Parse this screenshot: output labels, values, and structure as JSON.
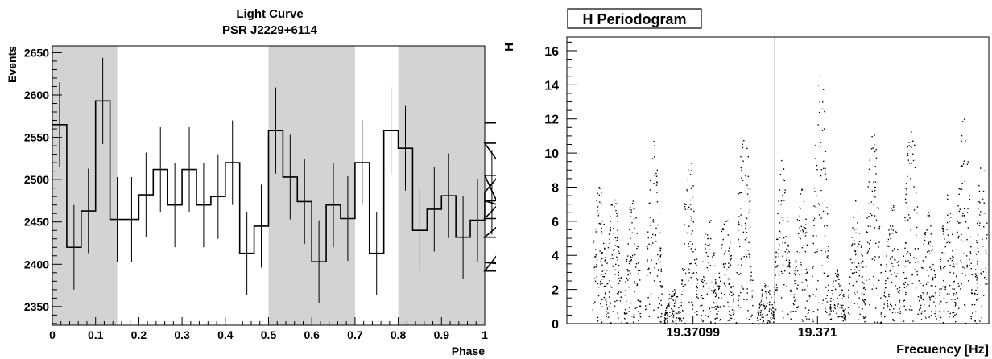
{
  "left_panel": {
    "title": "Light Curve",
    "subtitle": "PSR J2229+6114"
  },
  "right_panel": {
    "title": "H Periodogram"
  },
  "chart_data": [
    {
      "type": "histogram",
      "title": "Light Curve",
      "subtitle": "PSR J2229+6114",
      "xlabel": "Phase",
      "ylabel": "Events",
      "xlim": [
        0,
        1
      ],
      "ylim": [
        2328,
        2658
      ],
      "x_ticks": [
        0,
        0.1,
        0.2,
        0.3,
        0.4,
        0.5,
        0.6,
        0.7,
        0.8,
        0.9,
        1
      ],
      "x_tick_labels": [
        "0",
        "0.1",
        "0.2",
        "0.3",
        "0.4",
        "0.5",
        "0.6",
        "0.7",
        "0.8",
        "0.9",
        "1"
      ],
      "y_ticks": [
        2350,
        2400,
        2450,
        2500,
        2550,
        2600,
        2650
      ],
      "y_tick_labels": [
        "2350",
        "2400",
        "2450",
        "2500",
        "2550",
        "2600",
        "2650"
      ],
      "shaded_phase_ranges": [
        [
          0,
          0.15
        ],
        [
          0.5,
          0.7
        ],
        [
          0.8,
          1
        ]
      ],
      "shade_color": "#d3d3d3",
      "bin_width": 0.03333,
      "values": [
        2565,
        2420,
        2463,
        2593,
        2453,
        2453,
        2482,
        2512,
        2470,
        2512,
        2470,
        2480,
        2520,
        2413,
        2445,
        2558,
        2503,
        2474,
        2403,
        2470,
        2454,
        2520,
        2413,
        2558,
        2537,
        2440,
        2465,
        2481,
        2432,
        2452,
        2485,
        2505,
        2432,
        2475,
        2454,
        2543,
        2402,
        2392,
        2567
      ],
      "errors": [
        50,
        50,
        50,
        51,
        50,
        50,
        50,
        50,
        50,
        50,
        50,
        50,
        50,
        49,
        49,
        51,
        50,
        50,
        49,
        50,
        50,
        50,
        49,
        51,
        50,
        49,
        50,
        50,
        49,
        49,
        50,
        50,
        49,
        50,
        50,
        50,
        49,
        49,
        51
      ]
    },
    {
      "type": "scatter",
      "title": "H Periodogram",
      "xlabel": "Frecuency [Hz]",
      "ylabel": "H",
      "ylim": [
        0,
        16.8
      ],
      "y_ticks": [
        0,
        2,
        4,
        6,
        8,
        10,
        12,
        14,
        16
      ],
      "y_tick_labels": [
        "0",
        "2",
        "4",
        "6",
        "8",
        "10",
        "12",
        "14",
        "16"
      ],
      "x_tick_labels": [
        "19.37099",
        "19.371"
      ],
      "x_tick_label_positions_relative": [
        0.299,
        0.594
      ],
      "vertical_line_relative_x": 0.493,
      "lobes": [
        {
          "c": 0.075,
          "pk": 8.2
        },
        {
          "c": 0.11,
          "pk": 7.6
        },
        {
          "c": 0.155,
          "pk": 7.6
        },
        {
          "c": 0.205,
          "pk": 10.8
        },
        {
          "c": 0.25,
          "pk": 2.2
        },
        {
          "c": 0.29,
          "pk": 10.0
        },
        {
          "c": 0.335,
          "pk": 6.6
        },
        {
          "c": 0.375,
          "pk": 6.6
        },
        {
          "c": 0.42,
          "pk": 12.1
        },
        {
          "c": 0.47,
          "pk": 2.5
        },
        {
          "c": 0.51,
          "pk": 9.7
        },
        {
          "c": 0.555,
          "pk": 8.0
        },
        {
          "c": 0.6,
          "pk": 15.2
        },
        {
          "c": 0.64,
          "pk": 3.2
        },
        {
          "c": 0.685,
          "pk": 7.4
        },
        {
          "c": 0.725,
          "pk": 11.6
        },
        {
          "c": 0.77,
          "pk": 7.2
        },
        {
          "c": 0.815,
          "pk": 12.3
        },
        {
          "c": 0.855,
          "pk": 6.6
        },
        {
          "c": 0.9,
          "pk": 7.6
        },
        {
          "c": 0.94,
          "pk": 12.3
        },
        {
          "c": 0.985,
          "pk": 10.0
        }
      ]
    }
  ]
}
